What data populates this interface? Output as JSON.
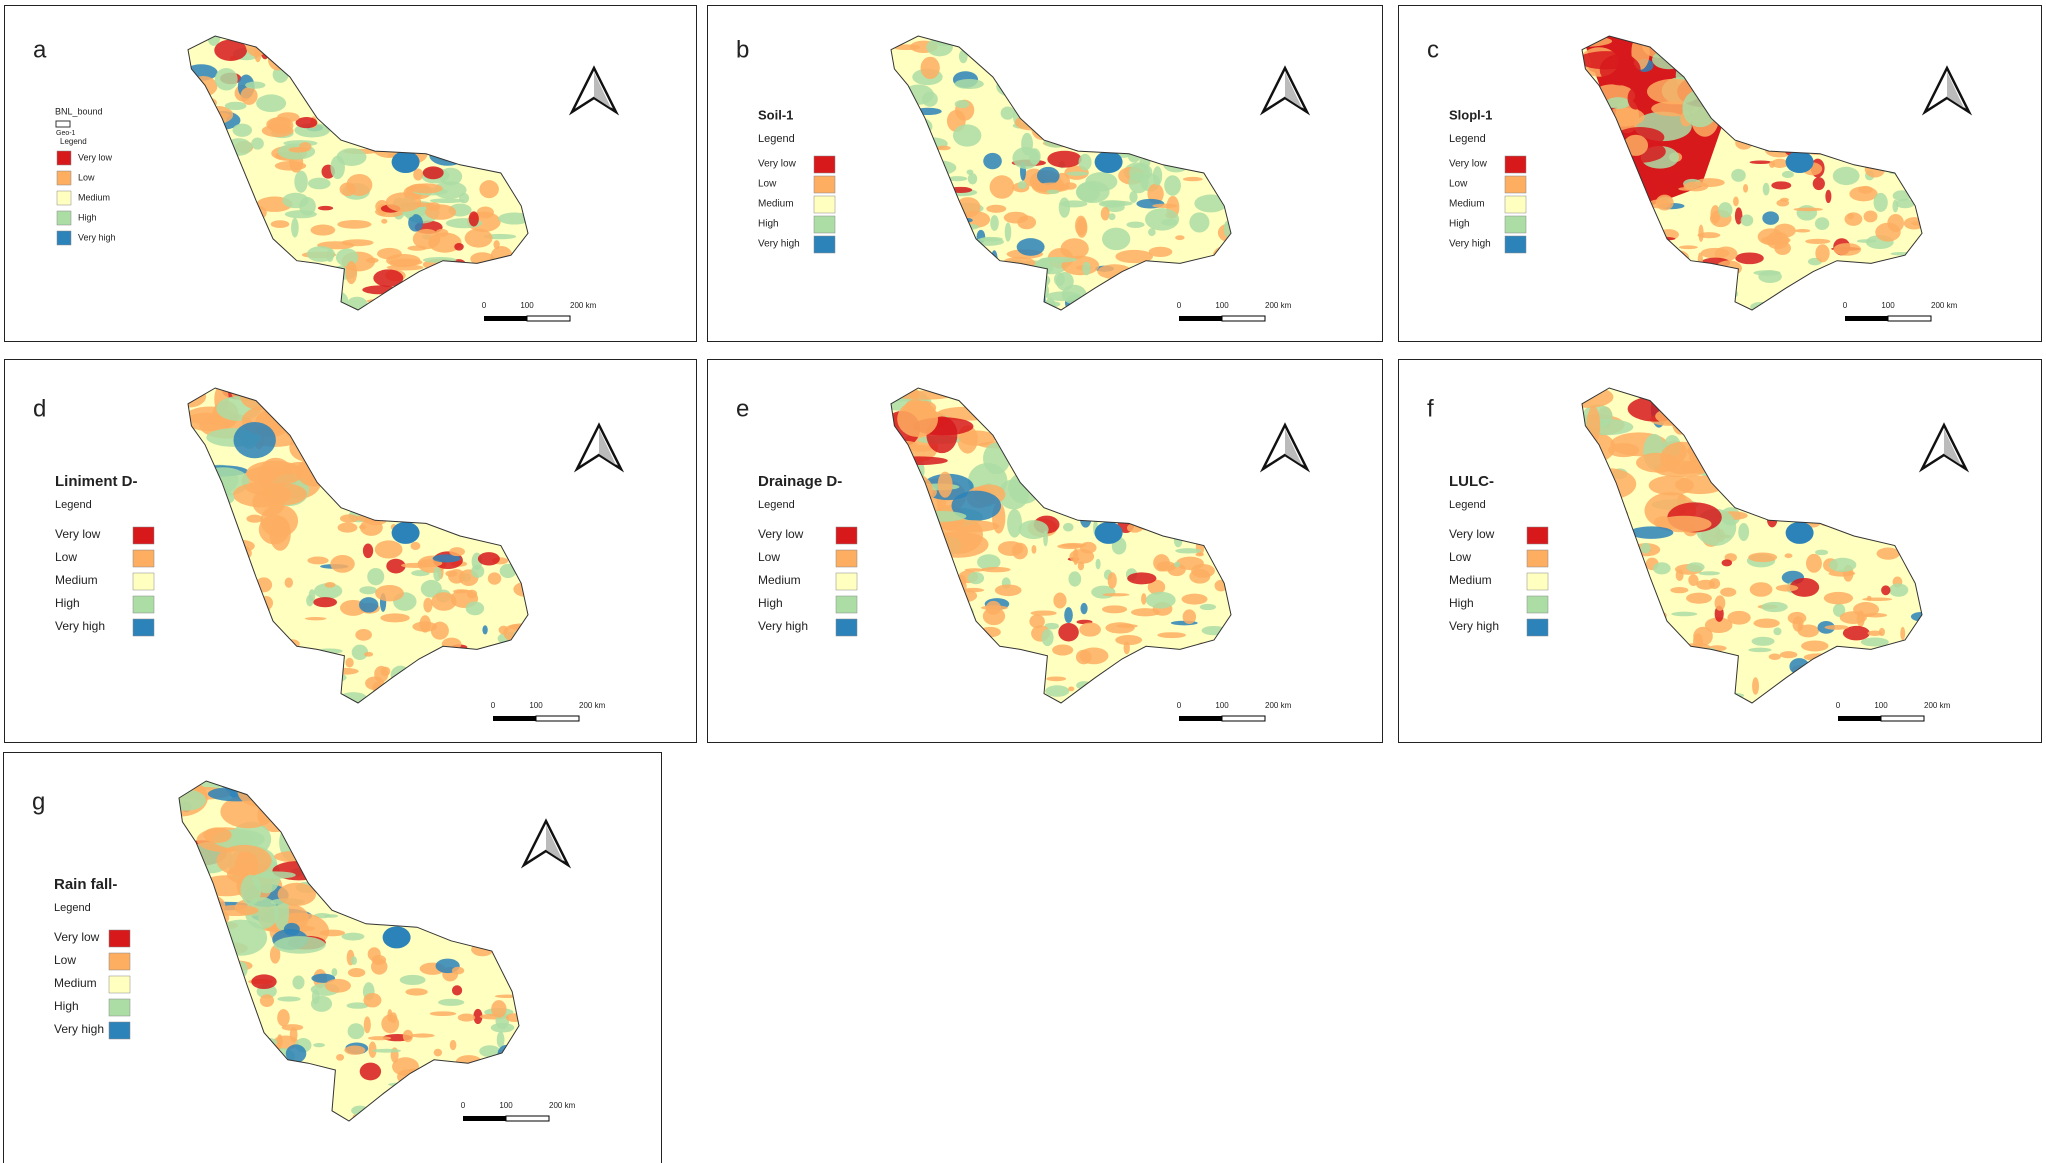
{
  "panels": [
    {
      "letter": "a",
      "layer": "BNL_bound",
      "sublayer": "Geo-1",
      "legend_title": "Legend",
      "legend": [
        {
          "label": "Very low",
          "color": "#d7191c"
        },
        {
          "label": "Low",
          "color": "#fdae61"
        },
        {
          "label": "Medium",
          "color": "#ffffbf"
        },
        {
          "label": "High",
          "color": "#abdda4"
        },
        {
          "label": "Very high",
          "color": "#2b83ba"
        }
      ],
      "scale": [
        "0",
        "100",
        "200 km"
      ]
    },
    {
      "letter": "b",
      "title": "Soil-1",
      "legend_title": "Legend",
      "legend": [
        {
          "label": "Very low",
          "color": "#d7191c"
        },
        {
          "label": "Low",
          "color": "#fdae61"
        },
        {
          "label": "Medium",
          "color": "#ffffbf"
        },
        {
          "label": "High",
          "color": "#abdda4"
        },
        {
          "label": "Very high",
          "color": "#2b83ba"
        }
      ],
      "scale": [
        "0",
        "100",
        "200 km"
      ]
    },
    {
      "letter": "c",
      "title": "Slopl-1",
      "legend_title": "Legend",
      "legend": [
        {
          "label": "Very low",
          "color": "#d7191c"
        },
        {
          "label": "Low",
          "color": "#fdae61"
        },
        {
          "label": "Medium",
          "color": "#ffffbf"
        },
        {
          "label": "High",
          "color": "#abdda4"
        },
        {
          "label": "Very high",
          "color": "#2b83ba"
        }
      ],
      "scale": [
        "0",
        "100",
        "200 km"
      ]
    },
    {
      "letter": "d",
      "title": "Liniment D-",
      "legend_title": "Legend",
      "legend": [
        {
          "label": "Very low",
          "color": "#d7191c"
        },
        {
          "label": "Low",
          "color": "#fdae61"
        },
        {
          "label": "Medium",
          "color": "#ffffbf"
        },
        {
          "label": "High",
          "color": "#abdda4"
        },
        {
          "label": "Very high",
          "color": "#2b83ba"
        }
      ],
      "scale": [
        "0",
        "100",
        "200 km"
      ]
    },
    {
      "letter": "e",
      "title": "Drainage D-",
      "legend_title": "Legend",
      "legend": [
        {
          "label": "Very low",
          "color": "#d7191c"
        },
        {
          "label": "Low",
          "color": "#fdae61"
        },
        {
          "label": "Medium",
          "color": "#ffffbf"
        },
        {
          "label": "High",
          "color": "#abdda4"
        },
        {
          "label": "Very high",
          "color": "#2b83ba"
        }
      ],
      "scale": [
        "0",
        "100",
        "200 km"
      ]
    },
    {
      "letter": "f",
      "title": "LULC-",
      "legend_title": "Legend",
      "legend": [
        {
          "label": "Very low",
          "color": "#d7191c"
        },
        {
          "label": "Low",
          "color": "#fdae61"
        },
        {
          "label": "Medium",
          "color": "#ffffbf"
        },
        {
          "label": "High",
          "color": "#abdda4"
        },
        {
          "label": "Very high",
          "color": "#2b83ba"
        }
      ],
      "scale": [
        "0",
        "100",
        "200 km"
      ]
    },
    {
      "letter": "g",
      "title": "Rain fall-",
      "legend_title": "Legend",
      "legend": [
        {
          "label": "Very low",
          "color": "#d7191c"
        },
        {
          "label": "Low",
          "color": "#fdae61"
        },
        {
          "label": "Medium",
          "color": "#ffffbf"
        },
        {
          "label": "High",
          "color": "#abdda4"
        },
        {
          "label": "Very high",
          "color": "#2b83ba"
        }
      ],
      "scale": [
        "0",
        "100",
        "200 km"
      ]
    }
  ]
}
